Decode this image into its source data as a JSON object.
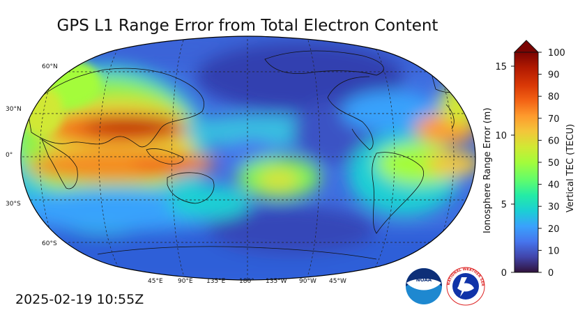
{
  "title": "GPS L1 Range Error from Total Electron Content",
  "timestamp": "2025-02-19 10:55Z",
  "map": {
    "lat_labels": [
      "60°N",
      "30°N",
      "0°",
      "30°S",
      "60°S"
    ],
    "lon_labels": [
      "45°E",
      "90°E",
      "135°E",
      "180°",
      "135°W",
      "90°W",
      "45°W"
    ]
  },
  "colorbar": {
    "left_label": "Ionosphere Range Error (m)",
    "right_label": "Vertical TEC (TECU)",
    "left_ticks": [
      "0",
      "5",
      "10",
      "15"
    ],
    "right_ticks": [
      "0",
      "10",
      "20",
      "30",
      "40",
      "50",
      "60",
      "70",
      "80",
      "90",
      "100"
    ],
    "colormap": [
      "#30123b",
      "#4145ab",
      "#4675ed",
      "#39a2fc",
      "#1bcfd4",
      "#24eca6",
      "#61fc6c",
      "#a4fc3b",
      "#d1e834",
      "#f3c63a",
      "#fe9b2d",
      "#f36315",
      "#d93806",
      "#b11901",
      "#7a0402"
    ]
  },
  "logos": {
    "noaa": "NOAA",
    "nws": "NATIONAL WEATHER SERVICE"
  }
}
